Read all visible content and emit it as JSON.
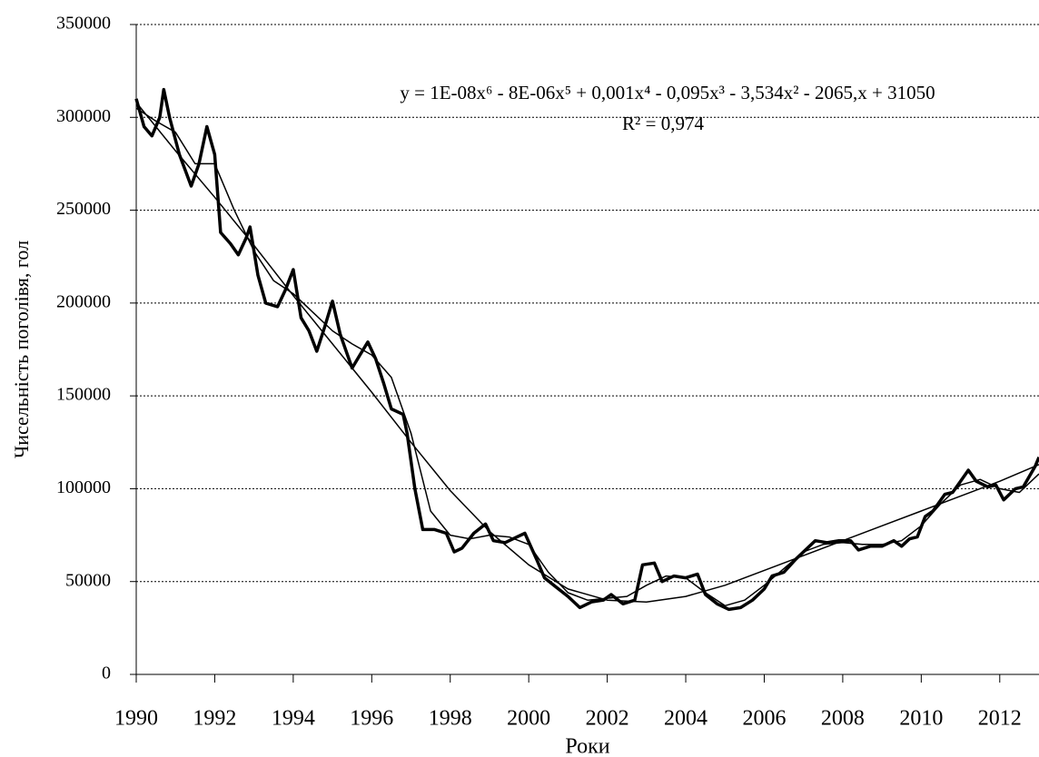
{
  "chart_data": {
    "type": "line",
    "xlabel": "Роки",
    "ylabel": "Чисельність поголівя, гол",
    "annotations": [
      "y = 1E-08x⁶ - 8E-06x⁵ + 0,001x⁴ - 0,095x³ - 3,534x² - 2065,x + 31050",
      "R² = 0,974"
    ],
    "xlim": [
      1990,
      2013
    ],
    "xticks": [
      1990,
      1992,
      1994,
      1996,
      1998,
      2000,
      2002,
      2004,
      2006,
      2008,
      2010,
      2012
    ],
    "ylim": [
      0,
      350000
    ],
    "yticks": [
      0,
      50000,
      100000,
      150000,
      200000,
      250000,
      300000,
      350000
    ],
    "grid": true,
    "series": [
      {
        "color": "#000000",
        "width": 3.5,
        "x": [
          1990.0,
          1990.2,
          1990.4,
          1990.6,
          1990.7,
          1990.85,
          1991.1,
          1991.4,
          1991.6,
          1991.8,
          1992.0,
          1992.15,
          1992.4,
          1992.6,
          1992.8,
          1992.9,
          1993.1,
          1993.3,
          1993.6,
          1993.8,
          1994.0,
          1994.2,
          1994.4,
          1994.6,
          1994.8,
          1995.0,
          1995.2,
          1995.5,
          1995.7,
          1995.9,
          1996.1,
          1996.3,
          1996.5,
          1996.8,
          1996.9,
          1997.1,
          1997.3,
          1997.6,
          1997.9,
          1998.1,
          1998.3,
          1998.6,
          1998.9,
          1999.1,
          1999.4,
          1999.7,
          1999.9,
          2000.2,
          2000.4,
          2000.7,
          2001.0,
          2001.3,
          2001.6,
          2001.9,
          2002.1,
          2002.4,
          2002.7,
          2002.9,
          2003.2,
          2003.4,
          2003.7,
          2004.0,
          2004.3,
          2004.5,
          2004.8,
          2005.1,
          2005.4,
          2005.7,
          2006.0,
          2006.2,
          2006.5,
          2006.8,
          2007.1,
          2007.3,
          2007.6,
          2007.9,
          2008.2,
          2008.4,
          2008.7,
          2009.0,
          2009.3,
          2009.5,
          2009.7,
          2009.9,
          2010.1,
          2010.3,
          2010.6,
          2010.8,
          2011.0,
          2011.2,
          2011.4,
          2011.7,
          2011.9,
          2012.1,
          2012.4,
          2012.6,
          2012.9,
          2013.0
        ],
        "values": [
          310000,
          295000,
          290000,
          300000,
          315000,
          300000,
          280000,
          263000,
          275000,
          295000,
          280000,
          238000,
          232000,
          226000,
          235000,
          241000,
          215000,
          200000,
          198000,
          207000,
          218000,
          192000,
          185000,
          174000,
          187000,
          201000,
          183000,
          165000,
          172000,
          179000,
          170000,
          157000,
          143000,
          140000,
          130000,
          100000,
          78000,
          78000,
          76000,
          66000,
          68000,
          76000,
          81000,
          72000,
          71000,
          74000,
          76000,
          62000,
          52000,
          47000,
          42000,
          36000,
          39000,
          40000,
          43000,
          38000,
          40000,
          59000,
          60000,
          50000,
          53000,
          52000,
          54000,
          43000,
          38000,
          35000,
          36000,
          40000,
          46000,
          53000,
          55000,
          62000,
          68000,
          72000,
          71000,
          72000,
          72000,
          67000,
          69000,
          69000,
          72000,
          69000,
          73000,
          74000,
          85000,
          88000,
          97000,
          98000,
          104000,
          110000,
          104000,
          101000,
          102000,
          94000,
          100000,
          101000,
          112000,
          117000
        ]
      },
      {
        "color": "#000000",
        "width": 1.5,
        "x": [
          1990,
          1990.5,
          1991,
          1991.5,
          1992,
          1992.5,
          1993,
          1993.5,
          1994,
          1994.5,
          1995,
          1995.5,
          1996,
          1996.5,
          1997,
          1997.5,
          1998,
          1998.5,
          1999,
          1999.5,
          2000,
          2000.5,
          2001,
          2001.5,
          2002,
          2002.5,
          2003,
          2003.5,
          2004,
          2004.5,
          2005,
          2005.5,
          2006,
          2006.5,
          2007,
          2007.5,
          2008,
          2008.5,
          2009,
          2009.5,
          2010,
          2010.5,
          2011,
          2011.5,
          2012,
          2012.5,
          2013
        ],
        "values": [
          305000,
          298000,
          292000,
          275000,
          275000,
          250000,
          228000,
          212000,
          205000,
          195000,
          185000,
          178000,
          172000,
          160000,
          130000,
          88000,
          75000,
          73000,
          75000,
          74000,
          70000,
          55000,
          44000,
          40000,
          41000,
          42000,
          48000,
          53000,
          52000,
          44000,
          37000,
          40000,
          48000,
          57000,
          66000,
          70000,
          71000,
          70000,
          70000,
          72000,
          80000,
          92000,
          102000,
          105000,
          100000,
          98000,
          108000
        ]
      },
      {
        "color": "#000000",
        "width": 1.5,
        "x": [
          1990,
          1991,
          1992,
          1993,
          1994,
          1995,
          1996,
          1997,
          1998,
          1999,
          2000,
          2001,
          2002,
          2003,
          2004,
          2005,
          2006,
          2007,
          2008,
          2009,
          2010,
          2011,
          2012,
          2013
        ],
        "values": [
          308000,
          282000,
          257000,
          231000,
          204000,
          178000,
          152000,
          125000,
          99000,
          77000,
          59000,
          46000,
          40000,
          39000,
          42000,
          48000,
          56000,
          64000,
          72000,
          80000,
          88000,
          96000,
          104000,
          113000
        ]
      }
    ]
  }
}
